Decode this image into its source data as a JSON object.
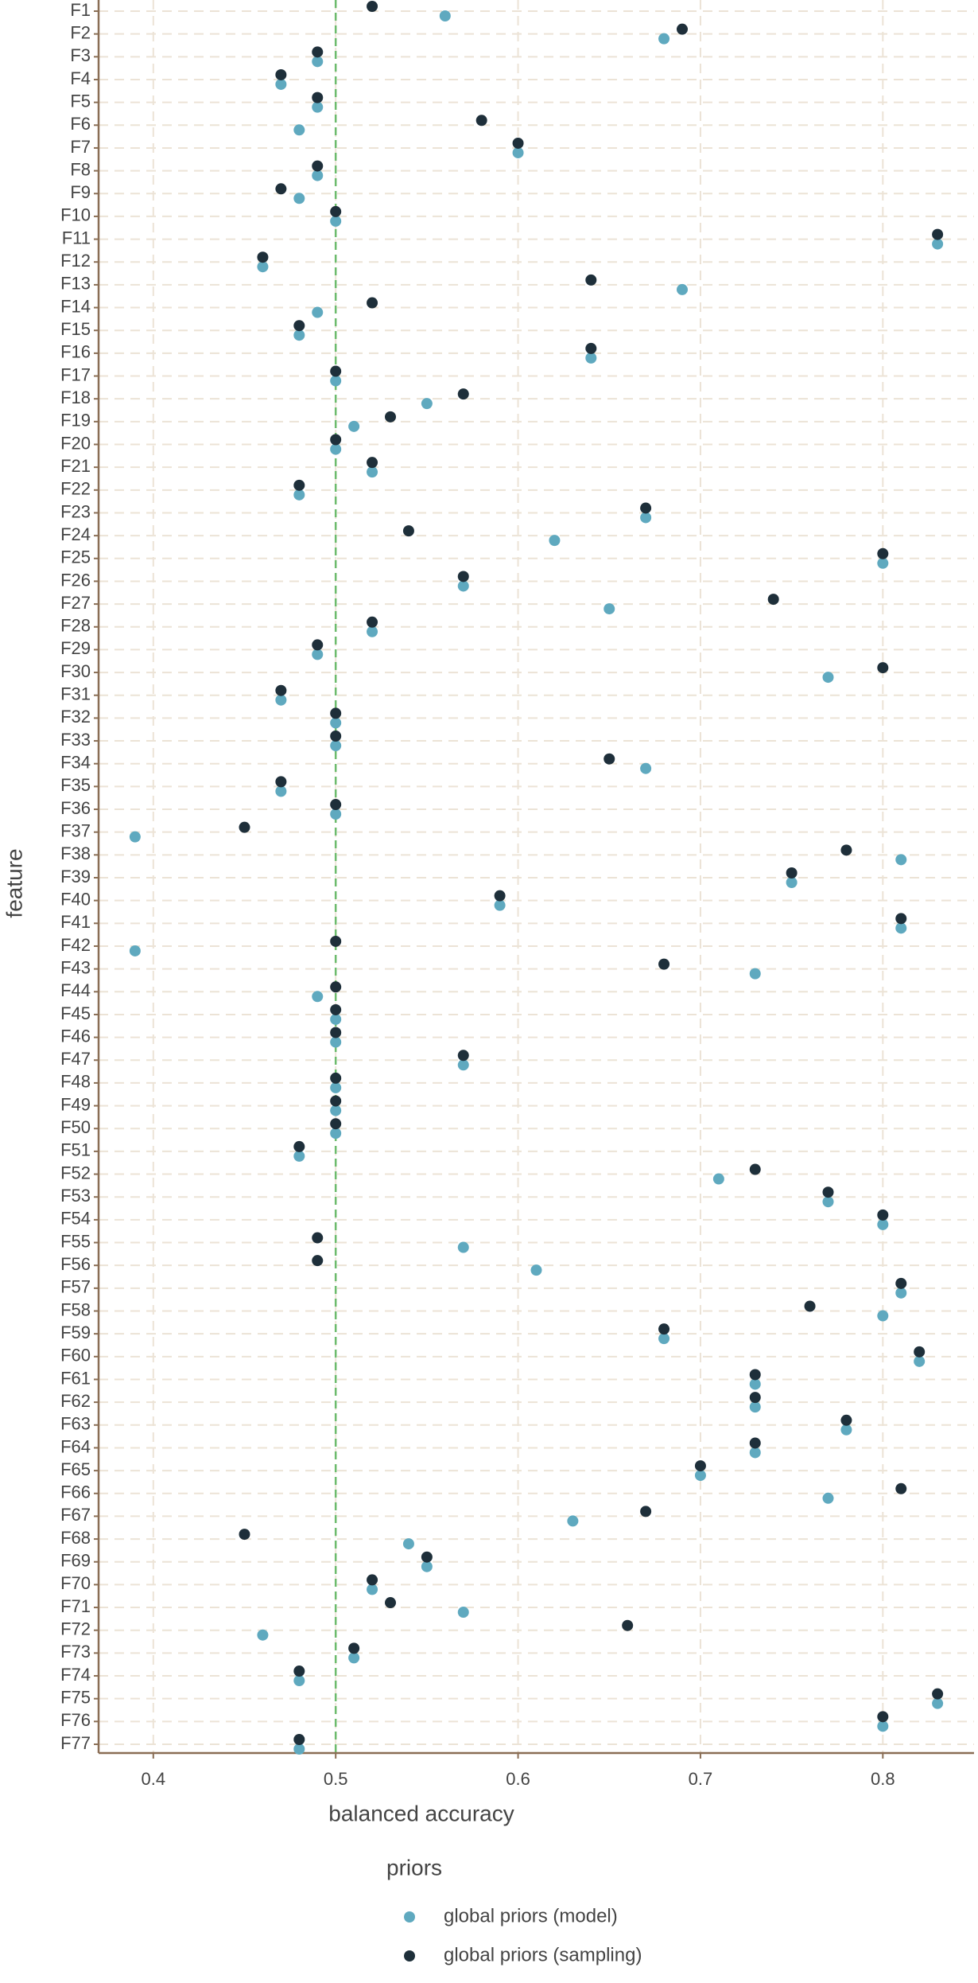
{
  "chart_data": {
    "type": "scatter",
    "xlabel": "balanced accuracy",
    "ylabel": "feature",
    "legend_title": "priors",
    "categories": [
      "F1",
      "F2",
      "F3",
      "F4",
      "F5",
      "F6",
      "F7",
      "F8",
      "F9",
      "F10",
      "F11",
      "F12",
      "F13",
      "F14",
      "F15",
      "F16",
      "F17",
      "F18",
      "F19",
      "F20",
      "F21",
      "F22",
      "F23",
      "F24",
      "F25",
      "F26",
      "F27",
      "F28",
      "F29",
      "F30",
      "F31",
      "F32",
      "F33",
      "F34",
      "F35",
      "F36",
      "F37",
      "F38",
      "F39",
      "F40",
      "F41",
      "F42",
      "F43",
      "F44",
      "F45",
      "F46",
      "F47",
      "F48",
      "F49",
      "F50",
      "F51",
      "F52",
      "F53",
      "F54",
      "F55",
      "F56",
      "F57",
      "F58",
      "F59",
      "F60",
      "F61",
      "F62",
      "F63",
      "F64",
      "F65",
      "F66",
      "F67",
      "F68",
      "F69",
      "F70",
      "F71",
      "F72",
      "F73",
      "F74",
      "F75",
      "F76",
      "F77"
    ],
    "series": [
      {
        "name": "global priors (model)",
        "color": "#5fa9bf",
        "values": [
          0.56,
          0.68,
          0.49,
          0.47,
          0.49,
          0.48,
          0.6,
          0.49,
          0.48,
          0.5,
          0.83,
          0.46,
          0.69,
          0.49,
          0.48,
          0.64,
          0.5,
          0.55,
          0.51,
          0.5,
          0.52,
          0.48,
          0.67,
          0.62,
          0.8,
          0.57,
          0.65,
          0.52,
          0.49,
          0.77,
          0.47,
          0.5,
          0.5,
          0.67,
          0.47,
          0.5,
          0.39,
          0.81,
          0.75,
          0.59,
          0.81,
          0.39,
          0.73,
          0.49,
          0.5,
          0.5,
          0.57,
          0.5,
          0.5,
          0.5,
          0.48,
          0.71,
          0.77,
          0.8,
          0.57,
          0.61,
          0.81,
          0.8,
          0.68,
          0.82,
          0.73,
          0.73,
          0.78,
          0.73,
          0.7,
          0.77,
          0.63,
          0.54,
          0.55,
          0.52,
          0.57,
          0.46,
          0.51,
          0.48,
          0.83,
          0.8,
          0.48
        ]
      },
      {
        "name": "global priors (sampling)",
        "color": "#1e2f3a",
        "values": [
          0.52,
          0.69,
          0.49,
          0.47,
          0.49,
          0.58,
          0.6,
          0.49,
          0.47,
          0.5,
          0.83,
          0.46,
          0.64,
          0.52,
          0.48,
          0.64,
          0.5,
          0.57,
          0.53,
          0.5,
          0.52,
          0.48,
          0.67,
          0.54,
          0.8,
          0.57,
          0.74,
          0.52,
          0.49,
          0.8,
          0.47,
          0.5,
          0.5,
          0.65,
          0.47,
          0.5,
          0.45,
          0.78,
          0.75,
          0.59,
          0.81,
          0.5,
          0.68,
          0.5,
          0.5,
          0.5,
          0.57,
          0.5,
          0.5,
          0.5,
          0.48,
          0.73,
          0.77,
          0.8,
          0.49,
          0.49,
          0.81,
          0.76,
          0.68,
          0.82,
          0.73,
          0.73,
          0.78,
          0.73,
          0.7,
          0.81,
          0.67,
          0.45,
          0.55,
          0.52,
          0.53,
          0.66,
          0.51,
          0.48,
          0.83,
          0.8,
          0.48
        ]
      }
    ],
    "xlim": [
      0.37,
      0.85
    ],
    "xticks": [
      0.4,
      0.5,
      0.6,
      0.7,
      0.8
    ],
    "reference_line": {
      "value": 0.5,
      "color": "#6dbb6d"
    },
    "grid": true
  }
}
